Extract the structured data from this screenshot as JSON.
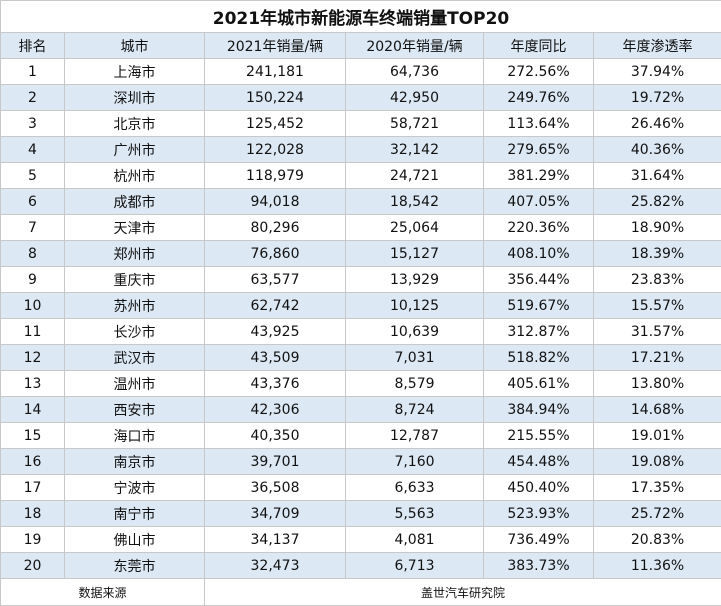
{
  "title": "2021年城市新能源车终端销量TOP20",
  "table": {
    "header": [
      "排名",
      "城市",
      "2021年销量/辆",
      "2020年销量/辆",
      "年度同比",
      "年度渗透率"
    ],
    "rows": [
      [
        "1",
        "上海市",
        "241,181",
        "64,736",
        "272.56%",
        "37.94%"
      ],
      [
        "2",
        "深圳市",
        "150,224",
        "42,950",
        "249.76%",
        "19.72%"
      ],
      [
        "3",
        "北京市",
        "125,452",
        "58,721",
        "113.64%",
        "26.46%"
      ],
      [
        "4",
        "广州市",
        "122,028",
        "32,142",
        "279.65%",
        "40.36%"
      ],
      [
        "5",
        "杭州市",
        "118,979",
        "24,721",
        "381.29%",
        "31.64%"
      ],
      [
        "6",
        "成都市",
        "94,018",
        "18,542",
        "407.05%",
        "25.82%"
      ],
      [
        "7",
        "天津市",
        "80,296",
        "25,064",
        "220.36%",
        "18.90%"
      ],
      [
        "8",
        "郑州市",
        "76,860",
        "15,127",
        "408.10%",
        "18.39%"
      ],
      [
        "9",
        "重庆市",
        "63,577",
        "13,929",
        "356.44%",
        "23.83%"
      ],
      [
        "10",
        "苏州市",
        "62,742",
        "10,125",
        "519.67%",
        "15.57%"
      ],
      [
        "11",
        "长沙市",
        "43,925",
        "10,639",
        "312.87%",
        "31.57%"
      ],
      [
        "12",
        "武汉市",
        "43,509",
        "7,031",
        "518.82%",
        "17.21%"
      ],
      [
        "13",
        "温州市",
        "43,376",
        "8,579",
        "405.61%",
        "13.80%"
      ],
      [
        "14",
        "西安市",
        "42,306",
        "8,724",
        "384.94%",
        "14.68%"
      ],
      [
        "15",
        "海口市",
        "40,350",
        "12,787",
        "215.55%",
        "19.01%"
      ],
      [
        "16",
        "南京市",
        "39,701",
        "7,160",
        "454.48%",
        "19.08%"
      ],
      [
        "17",
        "宁波市",
        "36,508",
        "6,633",
        "450.40%",
        "17.35%"
      ],
      [
        "18",
        "南宁市",
        "34,709",
        "5,563",
        "523.93%",
        "25.72%"
      ],
      [
        "19",
        "佛山市",
        "34,137",
        "4,081",
        "736.49%",
        "20.83%"
      ],
      [
        "20",
        "东莞市",
        "32,473",
        "6,713",
        "383.73%",
        "11.36%"
      ]
    ],
    "footer": [
      "数据来源",
      "盖世汽车研究院"
    ]
  }
}
